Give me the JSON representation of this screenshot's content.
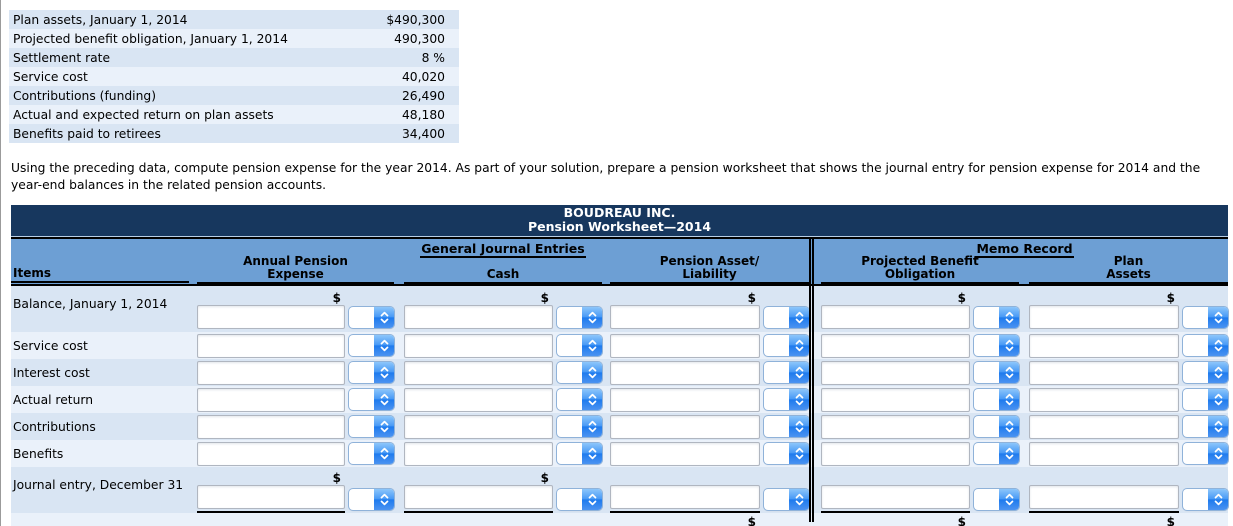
{
  "colors": {
    "navy": "#17375e",
    "head-blue": "#6d9fd4",
    "band-blue": "#d9e5f3",
    "band-lite": "#eaf1fa",
    "input-border": "#b0b6c0",
    "dd-border": "#8fb2d9",
    "page-edge": "#9b9b9b"
  },
  "facts_table": {
    "rows": [
      {
        "label": "Plan assets, January 1, 2014",
        "value": "$490,300"
      },
      {
        "label": "Projected benefit obligation, January 1, 2014",
        "value": "490,300"
      },
      {
        "label": "Settlement rate",
        "value": "8 %"
      },
      {
        "label": "Service cost",
        "value": "40,020"
      },
      {
        "label": "Contributions (funding)",
        "value": "26,490"
      },
      {
        "label": "Actual and expected return on plan assets",
        "value": "48,180"
      },
      {
        "label": "Benefits paid to retirees",
        "value": "34,400"
      }
    ]
  },
  "instruction": "Using the preceding data, compute pension expense for the year 2014. As part of your solution, prepare a pension worksheet that shows the journal entry for pension expense for 2014 and the year-end balances in the related pension accounts.",
  "worksheet": {
    "title_line1": "BOUDREAU INC.",
    "title_line2": "Pension Worksheet—2014",
    "group_headers": {
      "journal": "General Journal Entries",
      "memo": "Memo Record"
    },
    "columns": [
      {
        "line1": "",
        "line2": "Items"
      },
      {
        "line1": "Annual Pension",
        "line2": "Expense"
      },
      {
        "line1": "",
        "line2": "Cash"
      },
      {
        "line1": "Pension Asset/",
        "line2": "Liability"
      },
      {
        "line1": "Projected Benefit",
        "line2": "Obligation"
      },
      {
        "line1": "Plan",
        "line2": "Assets"
      }
    ],
    "dollar_sign": "$",
    "rows": [
      {
        "label": "Balance, January 1, 2014",
        "tall": true,
        "dollars_top": [
          true,
          true,
          true,
          true,
          true
        ],
        "underline": false,
        "inputs": [
          "",
          "",
          "",
          "",
          ""
        ]
      },
      {
        "label": "Service cost",
        "tall": false,
        "dollars_top": [
          false,
          false,
          false,
          false,
          false
        ],
        "underline": false,
        "inputs": [
          "",
          "",
          "",
          "",
          ""
        ]
      },
      {
        "label": "Interest cost",
        "tall": false,
        "dollars_top": [
          false,
          false,
          false,
          false,
          false
        ],
        "underline": false,
        "inputs": [
          "",
          "",
          "",
          "",
          ""
        ]
      },
      {
        "label": "Actual return",
        "tall": false,
        "dollars_top": [
          false,
          false,
          false,
          false,
          false
        ],
        "underline": false,
        "inputs": [
          "",
          "",
          "",
          "",
          ""
        ]
      },
      {
        "label": "Contributions",
        "tall": false,
        "dollars_top": [
          false,
          false,
          false,
          false,
          false
        ],
        "underline": false,
        "inputs": [
          "",
          "",
          "",
          "",
          ""
        ]
      },
      {
        "label": "Benefits",
        "tall": false,
        "dollars_top": [
          false,
          false,
          false,
          false,
          false
        ],
        "underline": false,
        "inputs": [
          "",
          "",
          "",
          "",
          ""
        ]
      },
      {
        "label": "Journal entry, December 31",
        "tall": true,
        "dollars_top": [
          true,
          true,
          false,
          false,
          false
        ],
        "underline": true,
        "inputs": [
          "",
          "",
          "",
          "",
          ""
        ]
      }
    ],
    "footer_row": {
      "label": "",
      "dollars_bottom": [
        false,
        false,
        true,
        true,
        true
      ]
    }
  }
}
